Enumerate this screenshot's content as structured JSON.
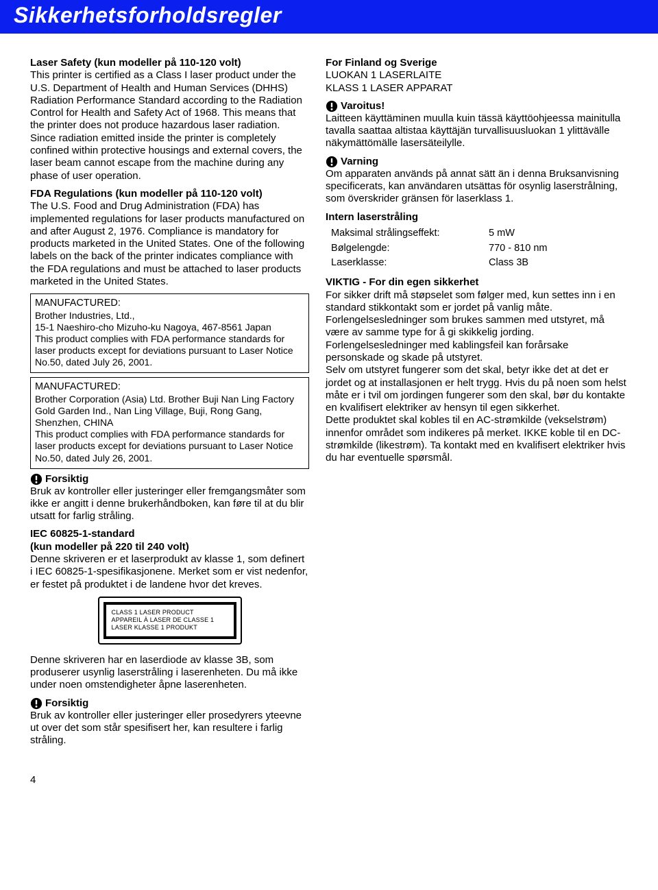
{
  "colors": {
    "title_bg": "#0b1fee",
    "title_text": "#ffffff",
    "body_text": "#000000",
    "body_bg": "#ffffff",
    "box_border": "#000000"
  },
  "title": "Sikkerhetsforholdsregler",
  "left": {
    "laserSafety": {
      "heading": "Laser Safety (kun modeller på 110-120 volt)",
      "body": "This printer is certified as a Class I laser product under the U.S. Department of Health and Human Services (DHHS) Radiation Performance Standard according to the Radiation Control for Health and Safety Act of 1968. This means that the printer does not produce hazardous laser radiation.\nSince radiation emitted inside the printer is completely confined within protective housings and external covers, the laser beam cannot escape from the machine during any phase of user operation."
    },
    "fda": {
      "heading": "FDA Regulations (kun modeller på 110-120 volt)",
      "body": "The U.S. Food and Drug Administration (FDA) has implemented regulations for laser products manufactured on and after August 2, 1976. Compliance is mandatory for products marketed in the United States. One of the following labels on the back of the printer indicates compliance with the FDA regulations and must be attached to laser products marketed in the United States."
    },
    "box1": {
      "mfrLabel": "MANUFACTURED:",
      "name": "Brother Industries, Ltd.,",
      "addr": "15-1 Naeshiro-cho Mizuho-ku Nagoya, 467-8561 Japan",
      "compliance": "This product complies with FDA performance standards for laser products except for deviations pursuant to Laser Notice No.50, dated July 26, 2001."
    },
    "box2": {
      "mfrLabel": "MANUFACTURED:",
      "name": "Brother Corporation (Asia) Ltd. Brother Buji Nan Ling Factory Gold Garden Ind., Nan Ling Village, Buji, Rong Gang, Shenzhen, CHINA",
      "compliance": "This product complies with FDA performance standards for laser products except for deviations pursuant to Laser Notice No.50, dated July 26, 2001."
    },
    "forsiktig1": {
      "label": "Forsiktig",
      "body": "Bruk av kontroller eller justeringer eller fremgangsmåter som ikke er angitt i denne brukerhåndboken, kan føre til at du blir utsatt for farlig stråling."
    },
    "iec": {
      "heading1": "IEC 60825-1-standard",
      "heading2": "(kun modeller på 220 til 240 volt)",
      "body": "Denne skriveren er et laserprodukt av klasse 1, som definert i IEC 60825-1-spesifikasjonene. Merket som er vist nedenfor, er festet på produktet i de landene hvor det kreves."
    },
    "laserLabel": {
      "line1": "CLASS 1 LASER PRODUCT",
      "line2": "APPAREIL À LASER DE CLASSE 1",
      "line3": "LASER KLASSE 1 PRODUKT"
    },
    "diode": "Denne skriveren har en laserdiode av klasse 3B, som produserer usynlig laserstråling i laserenheten. Du må ikke under noen omstendigheter åpne laserenheten.",
    "forsiktig2": {
      "label": "Forsiktig",
      "body": "Bruk av kontroller eller justeringer eller prosedyrers yteevne ut over det som står spesifisert her, kan resultere i farlig stråling."
    }
  },
  "right": {
    "finland": {
      "heading": "For Finland og Sverige",
      "line1": "LUOKAN 1 LASERLAITE",
      "line2": "KLASS 1 LASER APPARAT"
    },
    "varoitus": {
      "label": "Varoitus!",
      "body": "Laitteen käyttäminen muulla kuin tässä käyttöohjeessa mainitulla tavalla saattaa altistaa käyttäjän turvallisuusluokan 1 ylittävälle näkymättömälle lasersäteilylle."
    },
    "varning": {
      "label": "Varning",
      "body": "Om apparaten används på annat sätt än i denna Bruksanvisning specificerats, kan användaren utsättas för osynlig laserstrålning, som överskrider gränsen för laserklass 1."
    },
    "intern": {
      "heading": "Intern laserstråling",
      "rows": [
        {
          "k": "Maksimal strålingseffekt:",
          "v": "5 mW"
        },
        {
          "k": "Bølgelengde:",
          "v": "770 - 810 nm"
        },
        {
          "k": "Laserklasse:",
          "v": "Class 3B"
        }
      ]
    },
    "viktig": {
      "heading": "VIKTIG - For din egen sikkerhet",
      "body": "For sikker drift må støpselet som følger med, kun settes inn i en standard stikkontakt som er jordet på vanlig måte.\nForlengelsesledninger som brukes sammen med utstyret, må være av samme type for å gi skikkelig jording. Forlengelsesledninger med kablingsfeil kan forårsake personskade og skade på utstyret.\nSelv om utstyret fungerer som det skal, betyr ikke det at det er jordet og at installasjonen er helt trygg. Hvis du på noen som helst måte er i tvil om jordingen fungerer som den skal, bør du kontakte en kvalifisert elektriker av hensyn til egen sikkerhet.\nDette produktet skal kobles til en AC-strømkilde (vekselstrøm) innenfor området som indikeres på merket. IKKE koble til en DC-strømkilde (likestrøm). Ta kontakt med en kvalifisert elektriker hvis du har eventuelle spørsmål."
    }
  },
  "pageNumber": "4"
}
